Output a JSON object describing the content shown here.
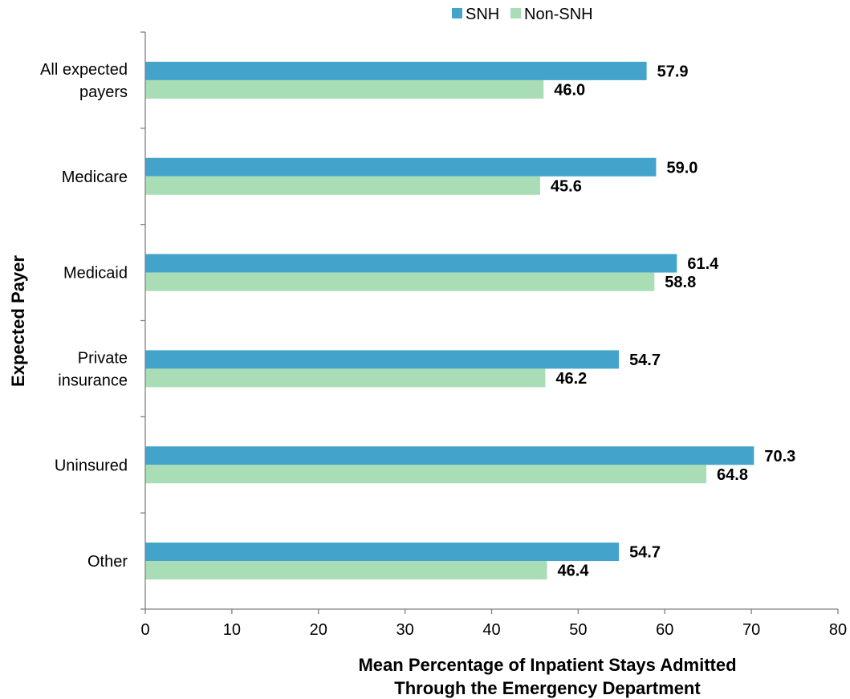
{
  "chart_data": {
    "type": "bar",
    "orientation": "horizontal",
    "categories": [
      [
        "All expected",
        "payers"
      ],
      [
        "Medicare"
      ],
      [
        "Medicaid"
      ],
      [
        "Private",
        "insurance"
      ],
      [
        "Uninsured"
      ],
      [
        "Other"
      ]
    ],
    "series": [
      {
        "name": "SNH",
        "color": "#43A3CB",
        "values": [
          57.9,
          59.0,
          61.4,
          54.7,
          70.3,
          54.7
        ],
        "labels": [
          "57.9",
          "59.0",
          "61.4",
          "54.7",
          "70.3",
          "54.7"
        ]
      },
      {
        "name": "Non-SNH",
        "color": "#A8DDB5",
        "values": [
          46.0,
          45.6,
          58.8,
          46.2,
          64.8,
          46.4
        ],
        "labels": [
          "46.0",
          "45.6",
          "58.8",
          "46.2",
          "64.8",
          "46.4"
        ]
      }
    ],
    "xlabel": [
      "Mean Percentage of Inpatient Stays Admitted",
      "Through the Emergency Department"
    ],
    "ylabel": "Expected Payer",
    "xlim": [
      0,
      80
    ],
    "xticks": [
      0,
      10,
      20,
      30,
      40,
      50,
      60,
      70,
      80
    ],
    "grid": false,
    "legend_position": "top"
  }
}
